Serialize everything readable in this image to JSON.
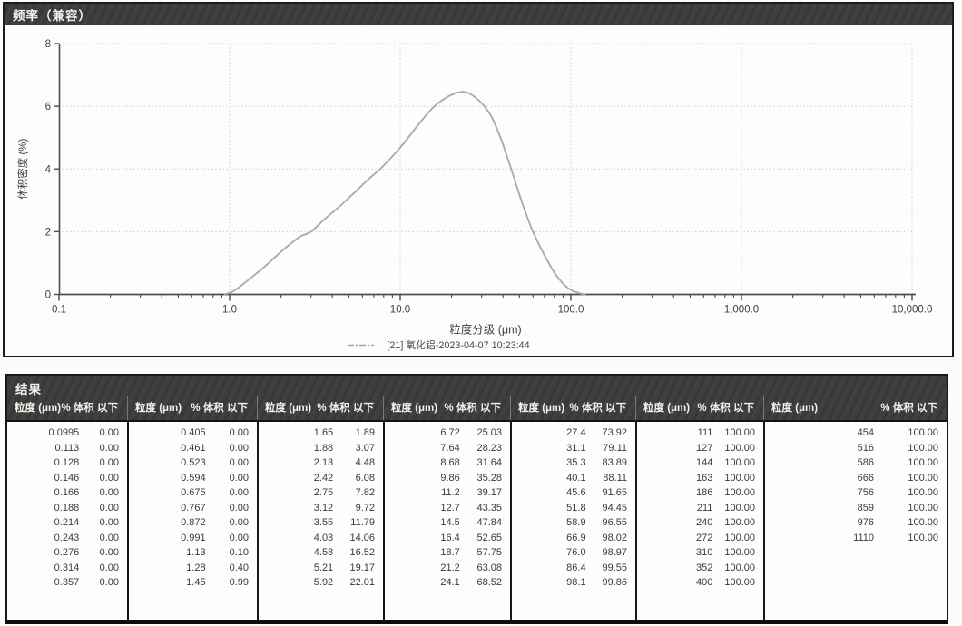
{
  "frequency_panel": {
    "title": "频率（兼容）"
  },
  "chart_data": {
    "type": "line",
    "title": "频率（兼容）",
    "xlabel": "粒度分级 (μm)",
    "ylabel": "体积密度 (%)",
    "x_scale": "log",
    "xlim": [
      0.1,
      10000
    ],
    "ylim": [
      0,
      8
    ],
    "grid": true,
    "x_ticks": [
      {
        "value": 0.1,
        "label": "0.1"
      },
      {
        "value": 1,
        "label": "1.0"
      },
      {
        "value": 10,
        "label": "10.0"
      },
      {
        "value": 100,
        "label": "100.0"
      },
      {
        "value": 1000,
        "label": "1,000.0"
      },
      {
        "value": 10000,
        "label": "10,000.0"
      }
    ],
    "y_ticks": [
      {
        "value": 0,
        "label": "0"
      },
      {
        "value": 2,
        "label": "2"
      },
      {
        "value": 4,
        "label": "4"
      },
      {
        "value": 6,
        "label": "6"
      },
      {
        "value": 8,
        "label": "8"
      }
    ],
    "legend": {
      "label": "[21] 氧化铝-2023-04-07 10:23:44",
      "position": "bottom"
    },
    "series": [
      {
        "name": "[21] 氧化铝-2023-04-07 10:23:44",
        "points": [
          [
            0.93,
            0
          ],
          [
            1.05,
            0.1
          ],
          [
            1.2,
            0.33
          ],
          [
            1.35,
            0.55
          ],
          [
            1.6,
            0.88
          ],
          [
            1.9,
            1.25
          ],
          [
            2.2,
            1.55
          ],
          [
            2.6,
            1.85
          ],
          [
            3.0,
            2.0
          ],
          [
            3.6,
            2.4
          ],
          [
            4.4,
            2.8
          ],
          [
            5.4,
            3.25
          ],
          [
            6.6,
            3.7
          ],
          [
            7.9,
            4.08
          ],
          [
            10,
            4.68
          ],
          [
            12.5,
            5.35
          ],
          [
            15.5,
            5.95
          ],
          [
            18.5,
            6.27
          ],
          [
            21.5,
            6.43
          ],
          [
            23.5,
            6.46
          ],
          [
            26,
            6.38
          ],
          [
            30,
            6.1
          ],
          [
            34,
            5.7
          ],
          [
            39,
            4.95
          ],
          [
            45,
            3.95
          ],
          [
            52,
            2.9
          ],
          [
            60,
            2.0
          ],
          [
            70,
            1.25
          ],
          [
            80,
            0.7
          ],
          [
            91,
            0.32
          ],
          [
            102,
            0.12
          ],
          [
            114,
            0.03
          ],
          [
            122,
            0
          ]
        ]
      }
    ]
  },
  "results_panel": {
    "title": "结果",
    "column_headers": {
      "size": "粒度 (μm)",
      "pct": "% 体积 以下"
    },
    "groups": [
      {
        "rows": [
          [
            "0.0995",
            "0.00"
          ],
          [
            "0.113",
            "0.00"
          ],
          [
            "0.128",
            "0.00"
          ],
          [
            "0.146",
            "0.00"
          ],
          [
            "0.166",
            "0.00"
          ],
          [
            "0.188",
            "0.00"
          ],
          [
            "0.214",
            "0.00"
          ],
          [
            "0.243",
            "0.00"
          ],
          [
            "0.276",
            "0.00"
          ],
          [
            "0.314",
            "0.00"
          ],
          [
            "0.357",
            "0.00"
          ]
        ]
      },
      {
        "rows": [
          [
            "0.405",
            "0.00"
          ],
          [
            "0.461",
            "0.00"
          ],
          [
            "0.523",
            "0.00"
          ],
          [
            "0.594",
            "0.00"
          ],
          [
            "0.675",
            "0.00"
          ],
          [
            "0.767",
            "0.00"
          ],
          [
            "0.872",
            "0.00"
          ],
          [
            "0.991",
            "0.00"
          ],
          [
            "1.13",
            "0.10"
          ],
          [
            "1.28",
            "0.40"
          ],
          [
            "1.45",
            "0.99"
          ]
        ]
      },
      {
        "rows": [
          [
            "1.65",
            "1.89"
          ],
          [
            "1.88",
            "3.07"
          ],
          [
            "2.13",
            "4.48"
          ],
          [
            "2.42",
            "6.08"
          ],
          [
            "2.75",
            "7.82"
          ],
          [
            "3.12",
            "9.72"
          ],
          [
            "3.55",
            "11.79"
          ],
          [
            "4.03",
            "14.06"
          ],
          [
            "4.58",
            "16.52"
          ],
          [
            "5.21",
            "19.17"
          ],
          [
            "5.92",
            "22.01"
          ]
        ]
      },
      {
        "rows": [
          [
            "6.72",
            "25.03"
          ],
          [
            "7.64",
            "28.23"
          ],
          [
            "8.68",
            "31.64"
          ],
          [
            "9.86",
            "35.28"
          ],
          [
            "11.2",
            "39.17"
          ],
          [
            "12.7",
            "43.35"
          ],
          [
            "14.5",
            "47.84"
          ],
          [
            "16.4",
            "52.65"
          ],
          [
            "18.7",
            "57.75"
          ],
          [
            "21.2",
            "63.08"
          ],
          [
            "24.1",
            "68.52"
          ]
        ]
      },
      {
        "rows": [
          [
            "27.4",
            "73.92"
          ],
          [
            "31.1",
            "79.11"
          ],
          [
            "35.3",
            "83.89"
          ],
          [
            "40.1",
            "88.11"
          ],
          [
            "45.6",
            "91.65"
          ],
          [
            "51.8",
            "94.45"
          ],
          [
            "58.9",
            "96.55"
          ],
          [
            "66.9",
            "98.02"
          ],
          [
            "76.0",
            "98.97"
          ],
          [
            "86.4",
            "99.55"
          ],
          [
            "98.1",
            "99.86"
          ]
        ]
      },
      {
        "rows": [
          [
            "111",
            "100.00"
          ],
          [
            "127",
            "100.00"
          ],
          [
            "144",
            "100.00"
          ],
          [
            "163",
            "100.00"
          ],
          [
            "186",
            "100.00"
          ],
          [
            "211",
            "100.00"
          ],
          [
            "240",
            "100.00"
          ],
          [
            "272",
            "100.00"
          ],
          [
            "310",
            "100.00"
          ],
          [
            "352",
            "100.00"
          ],
          [
            "400",
            "100.00"
          ]
        ]
      },
      {
        "rows": [
          [
            "454",
            "100.00"
          ],
          [
            "516",
            "100.00"
          ],
          [
            "586",
            "100.00"
          ],
          [
            "666",
            "100.00"
          ],
          [
            "756",
            "100.00"
          ],
          [
            "859",
            "100.00"
          ],
          [
            "976",
            "100.00"
          ],
          [
            "1110",
            "100.00"
          ]
        ]
      }
    ]
  },
  "colors": {
    "bar_background": "#3d3b39",
    "bar_text": "#f3f2ef",
    "panel_border": "#1d1c1b",
    "curve": "#a9ada9",
    "grid": "#c9cdc9",
    "axis": "#4c4c4a",
    "tick_text": "#3f3f3e",
    "table_text": "#3a3a39",
    "legend_line": "#9fa3a1"
  }
}
